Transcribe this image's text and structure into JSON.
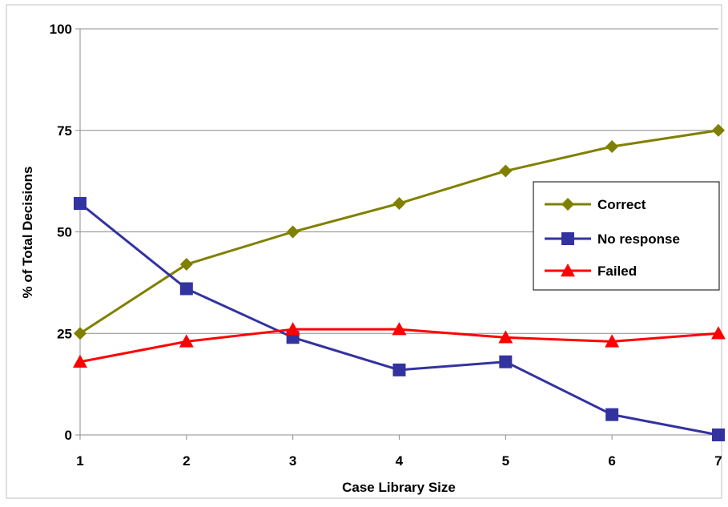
{
  "chart_data": {
    "type": "line",
    "title": "",
    "xlabel": "Case Library Size",
    "ylabel": "% of Total Decisions",
    "x": [
      1,
      2,
      3,
      4,
      5,
      6,
      7
    ],
    "x_tick_labels": [
      "1",
      "2",
      "3",
      "4",
      "5",
      "6",
      "7"
    ],
    "ylim": [
      0,
      100
    ],
    "y_ticks": [
      0,
      25,
      50,
      75,
      100
    ],
    "y_tick_labels": [
      "0",
      "25",
      "50",
      "75",
      "100"
    ],
    "grid": "horizontal",
    "legend_position": "right",
    "series": [
      {
        "name": "Correct",
        "values": [
          25,
          42,
          50,
          57,
          65,
          71,
          75
        ],
        "color": "#808000",
        "marker": "diamond"
      },
      {
        "name": "No response",
        "values": [
          57,
          36,
          24,
          16,
          18,
          5,
          0
        ],
        "color": "#3333a0",
        "marker": "square"
      },
      {
        "name": "Failed",
        "values": [
          18,
          23,
          26,
          26,
          24,
          23,
          25
        ],
        "color": "#ff0000",
        "marker": "triangle"
      }
    ]
  }
}
